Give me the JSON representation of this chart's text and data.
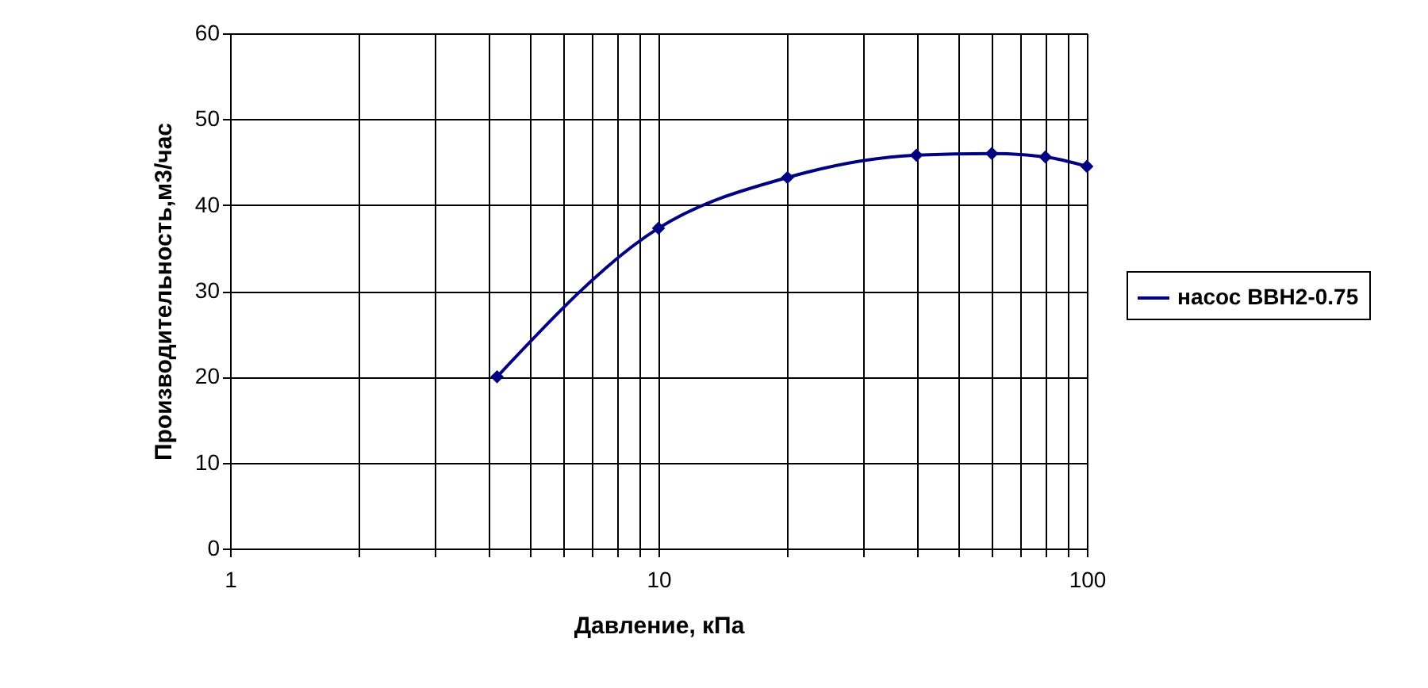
{
  "chart_data": {
    "type": "line",
    "xlabel": "Давление, кПа",
    "ylabel": "Производительность,м3/час",
    "x": [
      4.2,
      10,
      20,
      40,
      60,
      80,
      100
    ],
    "series": [
      {
        "name": "насос ВВН2-0.75",
        "color": "#000080",
        "values": [
          20,
          37.3,
          43.2,
          45.8,
          46,
          45.6,
          44.5
        ]
      }
    ],
    "log": "x",
    "xlim": [
      1,
      100
    ],
    "ylim": [
      0,
      60
    ],
    "xticks": [
      1,
      {
        "value": 2,
        "label": null
      },
      {
        "value": 3,
        "label": null
      },
      {
        "value": 4,
        "label": null
      },
      {
        "value": 5,
        "label": null
      },
      {
        "value": 6,
        "label": null
      },
      {
        "value": 7,
        "label": null
      },
      {
        "value": 8,
        "label": null
      },
      {
        "value": 9,
        "label": null
      },
      10,
      {
        "value": 20,
        "label": null
      },
      {
        "value": 30,
        "label": null
      },
      {
        "value": 40,
        "label": null
      },
      {
        "value": 50,
        "label": null
      },
      {
        "value": 60,
        "label": null
      },
      {
        "value": 70,
        "label": null
      },
      {
        "value": 80,
        "label": null
      },
      {
        "value": 90,
        "label": null
      },
      100
    ],
    "yticks": [
      0,
      10,
      20,
      30,
      40,
      50,
      60
    ],
    "grid": true,
    "legend": "right",
    "marker": "diamond",
    "line_style": "solid"
  }
}
